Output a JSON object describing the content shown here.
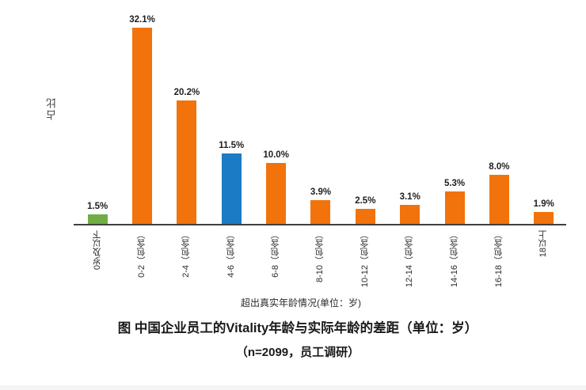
{
  "page": {
    "background": "#ffffff"
  },
  "chart_data": {
    "type": "bar",
    "categories": [
      "0岁及以下",
      "0-2（包含）",
      "2-4（包含）",
      "4-6（包含）",
      "6-8（包含）",
      "8-10（包含）",
      "10-12（包含）",
      "12-14（包含）",
      "14-16（包含）",
      "16-18（包含）",
      "18以上"
    ],
    "values": [
      1.5,
      32.1,
      20.2,
      11.5,
      10.0,
      3.9,
      2.5,
      3.1,
      5.3,
      8.0,
      1.9
    ],
    "value_labels": [
      "1.5%",
      "32.1%",
      "20.2%",
      "11.5%",
      "10.0%",
      "3.9%",
      "2.5%",
      "3.1%",
      "5.3%",
      "8.0%",
      "1.9%"
    ],
    "bar_colors": [
      "#70AD47",
      "#F2720C",
      "#F2720C",
      "#1B7BC4",
      "#F2720C",
      "#F2720C",
      "#F2720C",
      "#F2720C",
      "#F2720C",
      "#F2720C",
      "#F2720C"
    ],
    "title": "图 中国企业员工的Vitality年龄与实际年龄的差距（单位：岁）",
    "subtitle": "（n=2099，员工调研）",
    "xlabel": "超出真实年龄情况(单位：岁)",
    "ylabel": "占比",
    "ylim": [
      0,
      35
    ],
    "grid": false,
    "legend": "none",
    "y_axis_visible": false,
    "accent_colors": {
      "orange": "#F2720C",
      "blue": "#1B7BC4",
      "green": "#70AD47",
      "axis": "#3f3f3f"
    }
  }
}
